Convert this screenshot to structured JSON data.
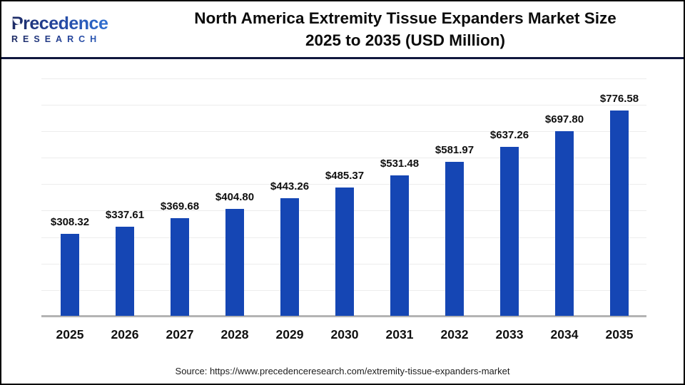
{
  "header": {
    "logo": {
      "word": "Precedence",
      "subword": "RESEARCH"
    },
    "title_line1": "North America Extremity Tissue Expanders Market Size",
    "title_line2": "2025 to 2035 (USD Million)"
  },
  "chart_data": {
    "type": "bar",
    "title": "North America Extremity Tissue Expanders Market Size 2025 to 2035 (USD Million)",
    "categories": [
      "2025",
      "2026",
      "2027",
      "2028",
      "2029",
      "2030",
      "2031",
      "2032",
      "2033",
      "2034",
      "2035"
    ],
    "values": [
      308.32,
      337.61,
      369.68,
      404.8,
      443.26,
      485.37,
      531.48,
      581.97,
      637.26,
      697.8,
      776.58
    ],
    "labels": [
      "$308.32",
      "$337.61",
      "$369.68",
      "$404.80",
      "$443.26",
      "$485.37",
      "$531.48",
      "$581.97",
      "$637.26",
      "$697.80",
      "$776.58"
    ],
    "xlabel": "",
    "ylabel": "",
    "ylim": [
      0,
      900
    ],
    "gridline_step": 100,
    "grid": true,
    "legend": false,
    "bar_color": "#1546B4",
    "gridline_color": "#ececec",
    "baseline_color": "#b4b4b4"
  },
  "footer": {
    "source": "Source: https://www.precedenceresearch.com/extremity-tissue-expanders-market"
  },
  "colors": {
    "header_rule": "#10173d",
    "outer_border": "#000000",
    "logo_navy": "#1d2a63",
    "logo_blue": "#2f6fd2"
  }
}
